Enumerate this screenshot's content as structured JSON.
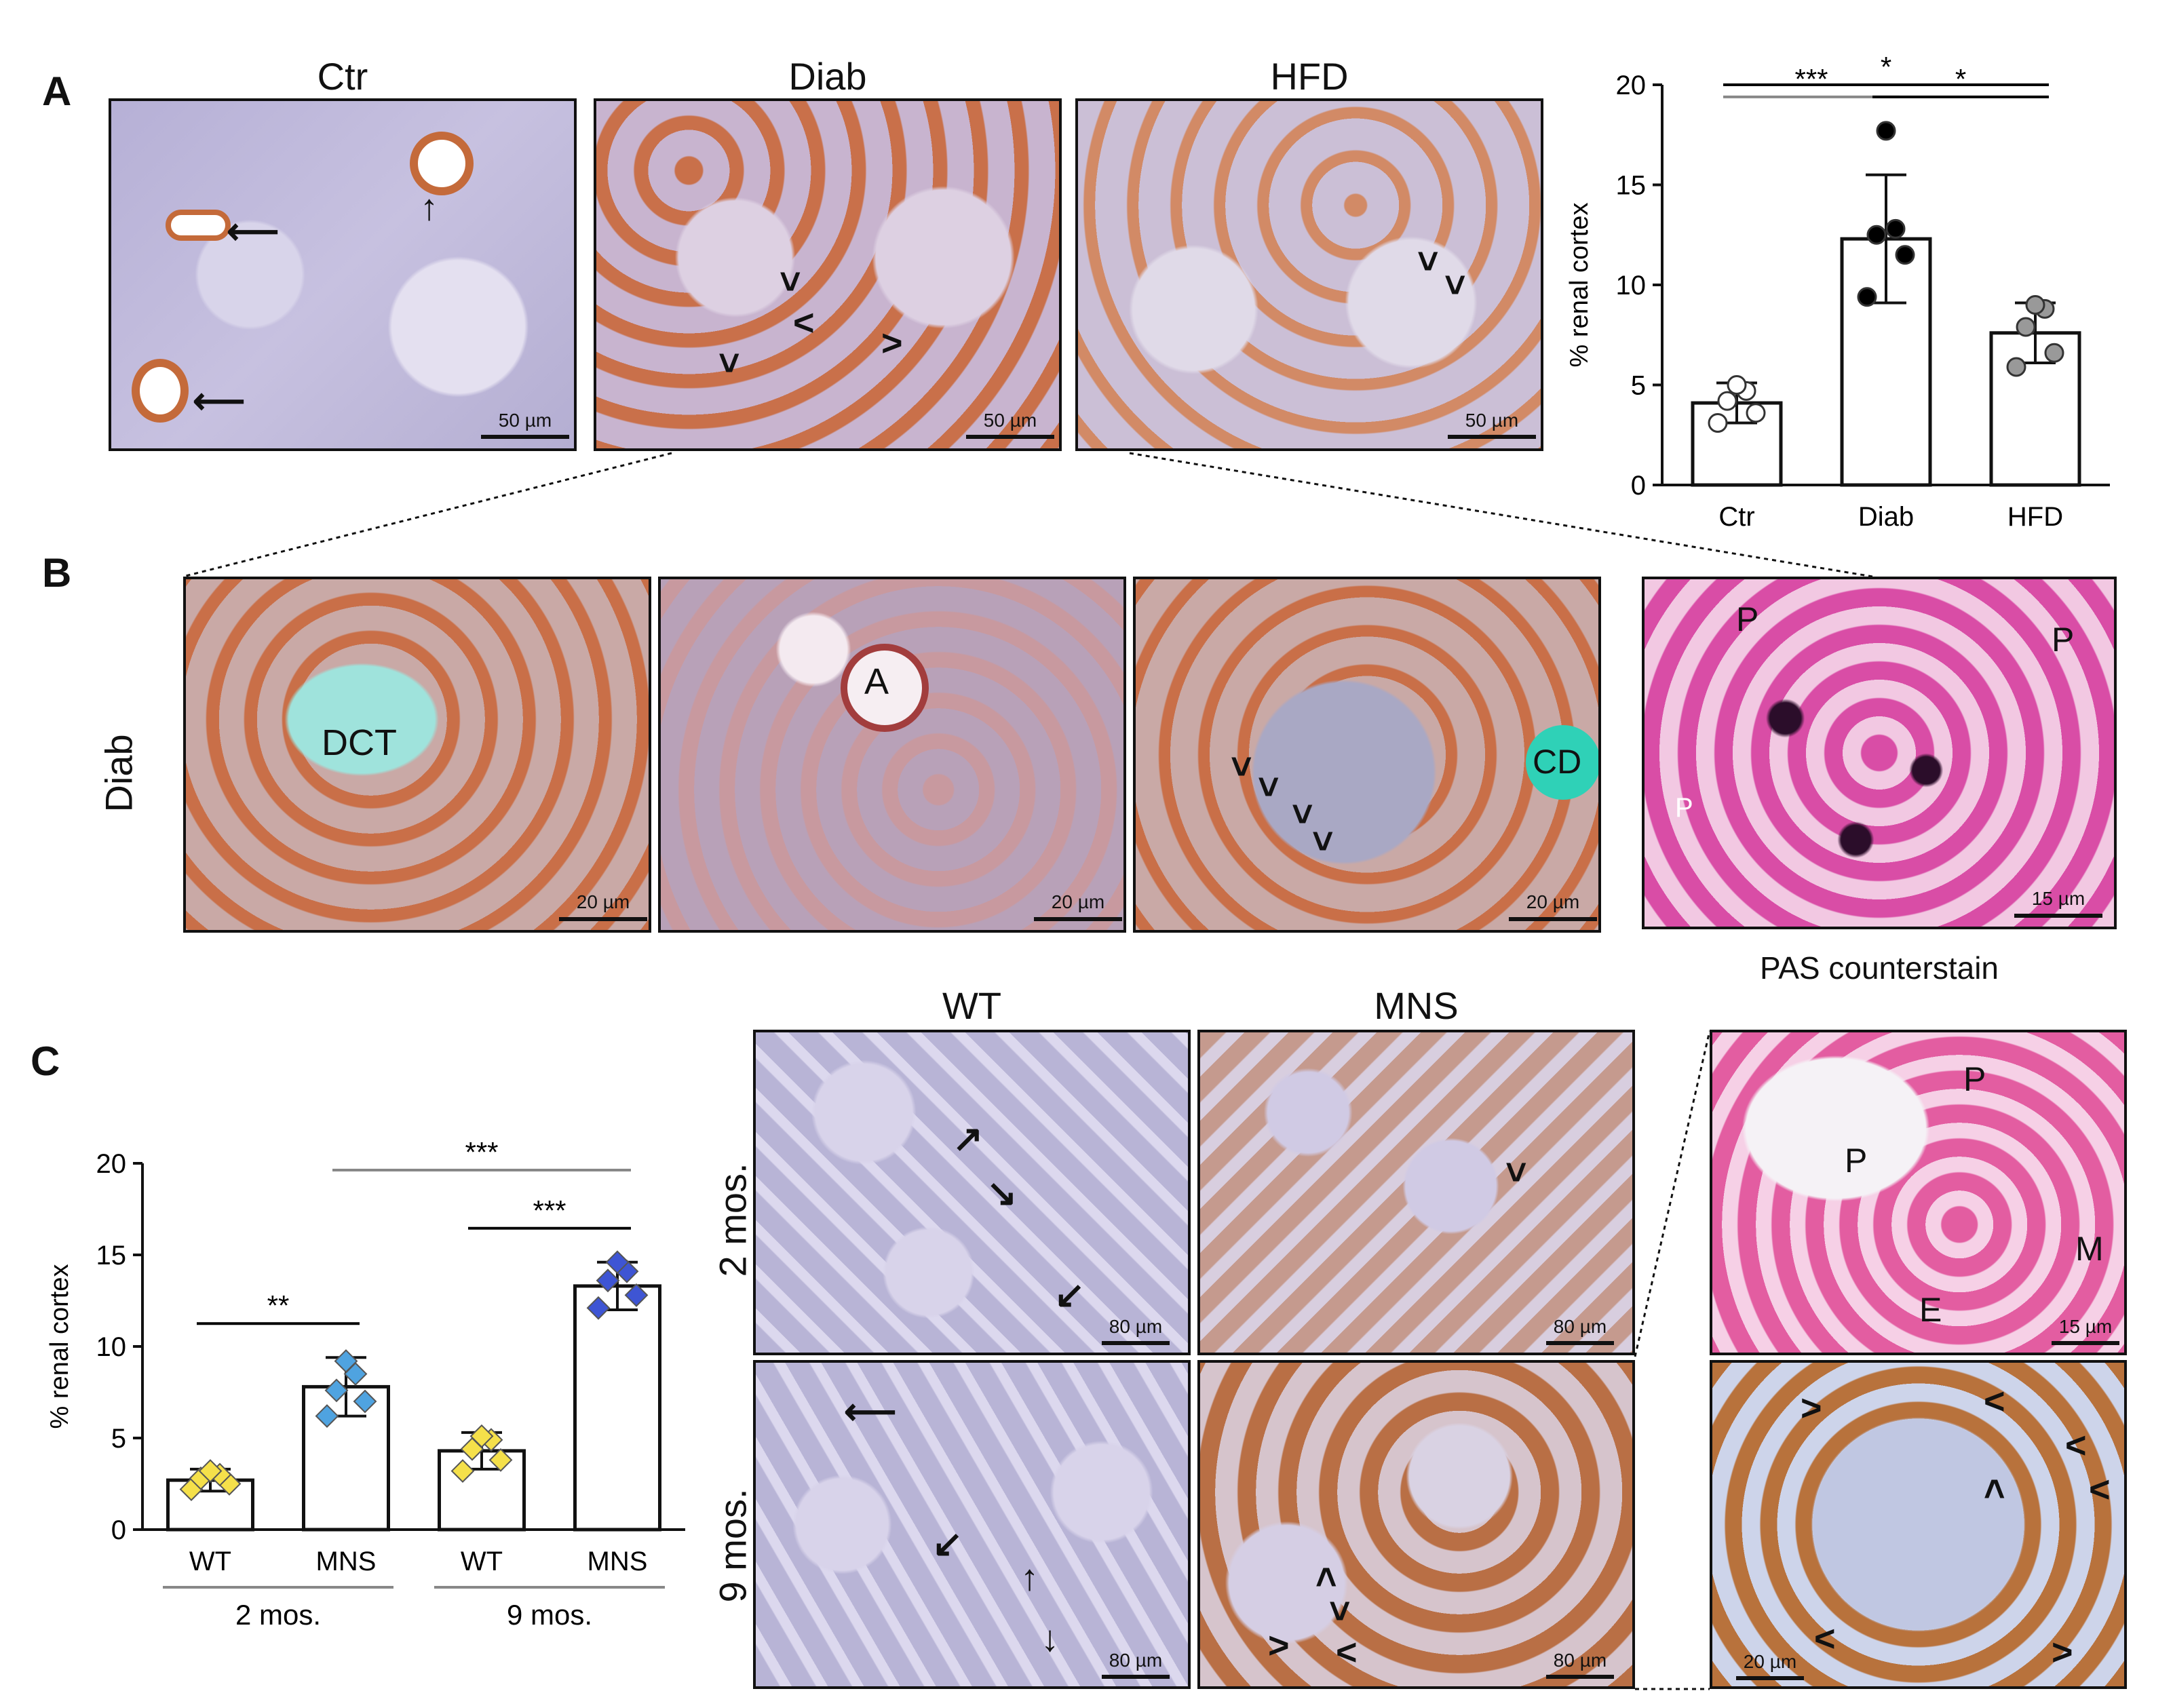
{
  "panelA": {
    "letter": "A",
    "titles": [
      "Ctr",
      "Diab",
      "HFD"
    ],
    "scale_labels": [
      "50 µm",
      "50 µm",
      "50 µm"
    ],
    "colors": {
      "ctr_bg": "#b8b4d4",
      "diab_bg": "#c9b4c8",
      "hfd_bg": "#c8bcd2",
      "stain_brown": "#c46a3a"
    }
  },
  "panelB": {
    "letter": "B",
    "row_label": "Diab",
    "labels": {
      "dct": "DCT",
      "a": "A",
      "cd": "CD",
      "p": "P",
      "caption": "PAS counterstain"
    },
    "scale_labels": [
      "20 µm",
      "20 µm",
      "20 µm",
      "15 µm"
    ]
  },
  "panelC": {
    "letter": "C",
    "col_titles": [
      "WT",
      "MNS"
    ],
    "row_labels": [
      "2 mos.",
      "9 mos."
    ],
    "scale_labels": [
      "80 µm",
      "80 µm",
      "80 µm",
      "80 µm"
    ],
    "inset_labels": {
      "p": "P",
      "m": "M",
      "e": "E"
    },
    "inset_scale_labels": [
      "15 µm",
      "20 µm"
    ]
  },
  "chart_data": [
    {
      "type": "bar",
      "panel": "A",
      "categories": [
        "Ctr",
        "Diab",
        "HFD"
      ],
      "values": [
        4.1,
        12.3,
        7.6
      ],
      "errors": [
        1.0,
        3.2,
        1.5
      ],
      "points": [
        [
          3.1,
          3.6,
          4.2,
          4.7,
          5.0
        ],
        [
          9.4,
          11.5,
          12.5,
          12.8,
          17.7
        ],
        [
          5.9,
          6.6,
          7.9,
          8.8,
          9.0
        ]
      ],
      "point_colors": [
        "#ffffff",
        "#000000",
        "#999999"
      ],
      "ylabel": "% renal cortex",
      "ylim": [
        0,
        20
      ],
      "yticks": [
        0,
        5,
        10,
        15,
        20
      ],
      "significance": [
        {
          "from": 0,
          "to": 1,
          "label": "***",
          "color": "#888888"
        },
        {
          "from": 1,
          "to": 2,
          "label": "*",
          "color": "#000000"
        },
        {
          "from": 0,
          "to": 2,
          "label": "*",
          "color": "#000000"
        }
      ]
    },
    {
      "type": "bar",
      "panel": "C",
      "categories": [
        "WT",
        "MNS",
        "WT",
        "MNS"
      ],
      "groups": [
        "2 mos.",
        "9 mos."
      ],
      "values": [
        2.7,
        7.8,
        4.3,
        13.3
      ],
      "errors": [
        0.6,
        1.6,
        1.0,
        1.3
      ],
      "points": [
        [
          2.2,
          2.5,
          2.8,
          3.0,
          3.2
        ],
        [
          6.2,
          7.0,
          7.6,
          8.5,
          9.2
        ],
        [
          3.2,
          3.8,
          4.4,
          4.9,
          5.1
        ],
        [
          12.1,
          12.8,
          13.6,
          14.1,
          14.6
        ]
      ],
      "point_colors": [
        "#f5e04a",
        "#4fa3e0",
        "#f5e04a",
        "#3e55d4"
      ],
      "ylabel": "% renal cortex",
      "ylim": [
        0,
        20
      ],
      "yticks": [
        0,
        5,
        10,
        15,
        20
      ],
      "significance": [
        {
          "from": 0,
          "to": 1,
          "label": "**",
          "color": "#000000"
        },
        {
          "from": 2,
          "to": 3,
          "label": "***",
          "color": "#000000"
        },
        {
          "from": 1,
          "to": 3,
          "label": "***",
          "color": "#888888"
        }
      ]
    }
  ]
}
